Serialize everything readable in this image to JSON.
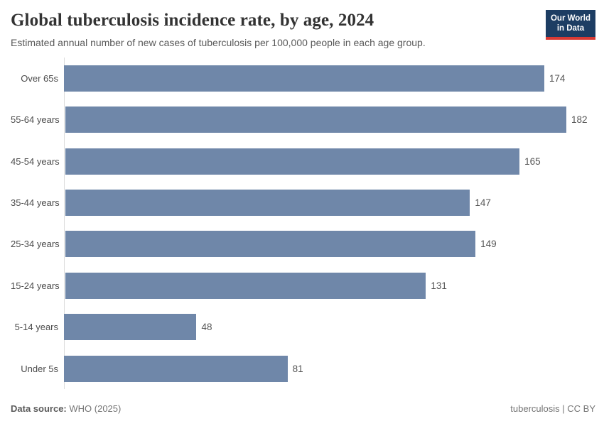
{
  "header": {
    "title": "Global tuberculosis incidence rate, by age, 2024",
    "subtitle": "Estimated annual number of new cases of tuberculosis per 100,000 people in each age group.",
    "logo": {
      "line1": "Our World",
      "line2": "in Data"
    }
  },
  "chart_data": {
    "type": "bar",
    "orientation": "horizontal",
    "title": "Global tuberculosis incidence rate, by age, 2024",
    "subtitle": "Estimated annual number of new cases of tuberculosis per 100,000 people in each age group.",
    "categories": [
      "Over 65s",
      "55-64 years",
      "45-54 years",
      "35-44 years",
      "25-34 years",
      "15-24 years",
      "5-14 years",
      "Under 5s"
    ],
    "values": [
      174,
      182,
      165,
      147,
      149,
      131,
      48,
      81
    ],
    "xlabel": "",
    "ylabel": "",
    "xlim": [
      0,
      190
    ],
    "grid": false,
    "value_labels": true,
    "legend": "none"
  },
  "footer": {
    "source_label": "Data source:",
    "source_value": "WHO (2025)",
    "license": "tuberculosis | CC BY"
  },
  "colors": {
    "bar": "#6f87a9",
    "logo_bg": "#1d3d63",
    "logo_accent": "#d93a34",
    "axis": "#dcdcdc"
  }
}
